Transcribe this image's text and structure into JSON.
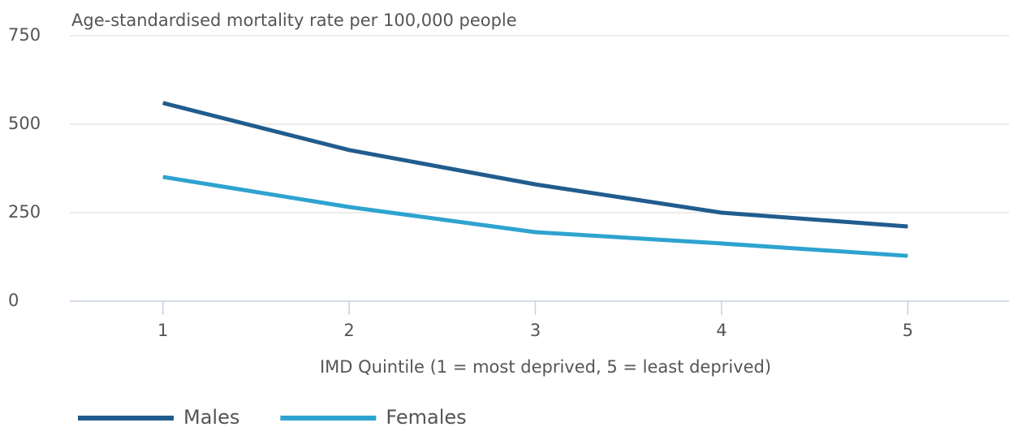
{
  "chart_data": {
    "type": "line",
    "title": "Age-standardised mortality rate per 100,000 people",
    "x_label": "IMD Quintile (1 = most deprived, 5 = least deprived)",
    "categories": [
      "1",
      "2",
      "3",
      "4",
      "5"
    ],
    "series": [
      {
        "name": "Males",
        "color": "#215c8e",
        "values": [
          560,
          427,
          330,
          250,
          211
        ]
      },
      {
        "name": "Females",
        "color": "#2ea3d0",
        "values": [
          351,
          266,
          195,
          163,
          128
        ]
      }
    ],
    "ylim": [
      0,
      750
    ],
    "yticks": [
      0,
      250,
      500,
      750
    ],
    "grid": true,
    "legend": "bottom-left"
  }
}
